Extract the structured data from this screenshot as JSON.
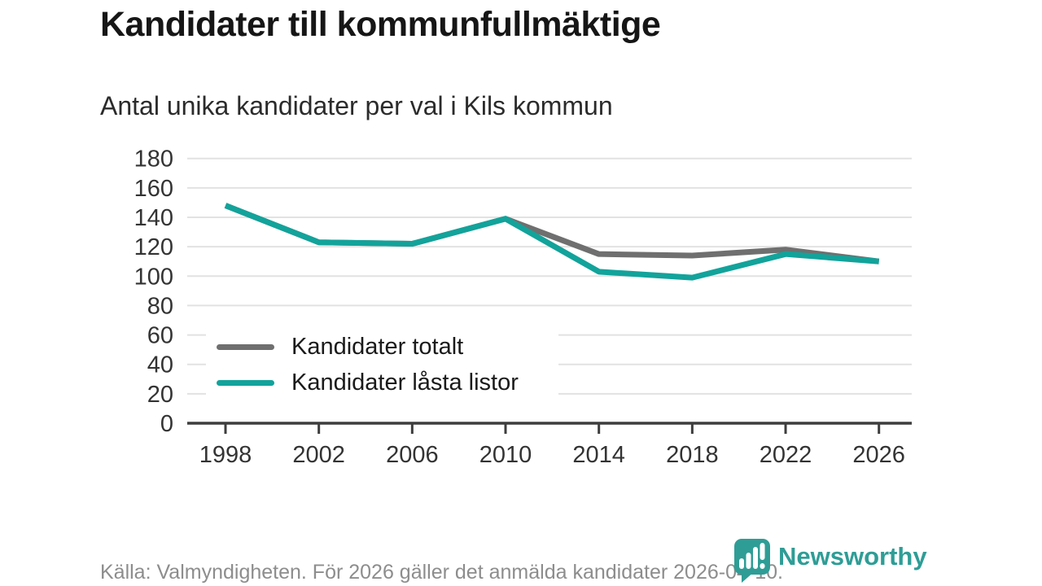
{
  "header": {
    "title": "Kandidater till kommunfullmäktige",
    "subtitle": "Antal unika kandidater per val i Kils kommun"
  },
  "chart_data": {
    "type": "line",
    "title": "Kandidater till kommunfullmäktige",
    "subtitle": "Antal unika kandidater per val i Kils kommun",
    "x": [
      1998,
      2002,
      2006,
      2010,
      2014,
      2018,
      2022,
      2026
    ],
    "series": [
      {
        "name": "Kandidater totalt",
        "color": "#6F6F6F",
        "values": [
          148,
          123,
          122,
          139,
          115,
          114,
          118,
          110
        ]
      },
      {
        "name": "Kandidater låsta listor",
        "color": "#12A39B",
        "values": [
          148,
          123,
          122,
          139,
          103,
          99,
          115,
          110
        ]
      }
    ],
    "ylim": [
      0,
      180
    ],
    "ytick_step": 20,
    "grid": "horizontal",
    "grid_color": "#E2E2E2",
    "axis_color": "#3D3D3D",
    "tick_label_color": "#333333",
    "legend_position": "inside-left"
  },
  "footer": {
    "source": "Källa: Valmyndigheten. För 2026 gäller det anmälda kandidater 2026-04-10."
  },
  "logo": {
    "text": "Newsworthy",
    "color": "#2E9D96",
    "icon": "newsworthy-speech-bubble-barchart-icon"
  }
}
